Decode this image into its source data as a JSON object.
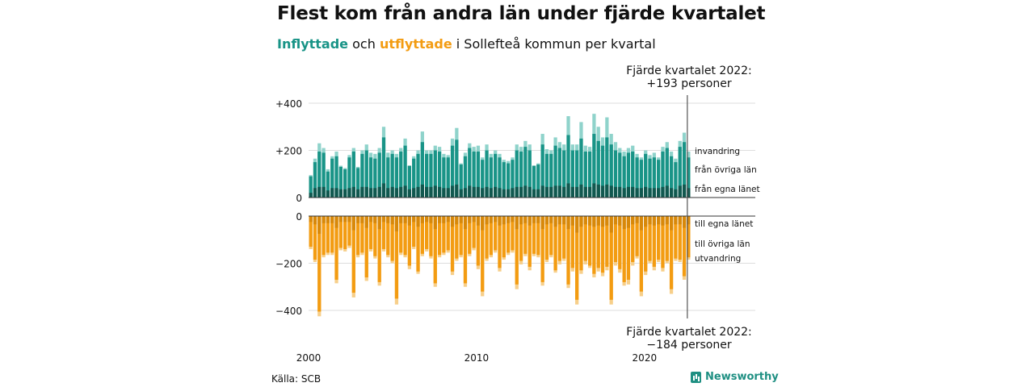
{
  "title": "Flest kom från andra län under fjärde kvartalet",
  "subtitle": {
    "in_word": "Inflyttade",
    "mid": " och ",
    "out_word": "utflyttade",
    "rest": " i Sollefteå kommun per kvartal"
  },
  "source": "Källa: SCB",
  "brand": "Newsworthy",
  "colors": {
    "in_own": "#11584f",
    "in_other": "#199487",
    "in_abroad": "#8fd3cb",
    "out_own": "#d7880a",
    "out_other": "#f39c12",
    "out_abroad": "#f7cf8a",
    "grid": "#dddddd",
    "axis": "#333333"
  },
  "chart_data": {
    "type": "bar",
    "x_start": 2000,
    "x_end": 2022.75,
    "x_unit": "kvartal",
    "ylim_top": [
      0,
      430
    ],
    "ylim_bottom": [
      -430,
      0
    ],
    "yticks_top": [
      "+400",
      "+200",
      "0"
    ],
    "yticks_bottom": [
      "0",
      "−200",
      "−400"
    ],
    "xticks": [
      "2000",
      "2010",
      "2020"
    ],
    "inflow_labels": [
      "invandring",
      "från övriga län",
      "från egna länet"
    ],
    "outflow_labels": [
      "till egna länet",
      "till övriga län",
      "utvandring"
    ],
    "annotation_top": [
      "Fjärde kvartalet 2022:",
      "+193 personer"
    ],
    "annotation_bottom": [
      "Fjärde kvartalet 2022:",
      "−184 personer"
    ],
    "inflow": {
      "total": [
        95,
        165,
        230,
        210,
        120,
        175,
        195,
        135,
        125,
        180,
        210,
        130,
        200,
        225,
        190,
        185,
        210,
        300,
        190,
        200,
        185,
        210,
        250,
        135,
        175,
        200,
        280,
        200,
        200,
        220,
        215,
        185,
        180,
        250,
        295,
        145,
        190,
        230,
        215,
        220,
        170,
        225,
        185,
        200,
        185,
        160,
        155,
        170,
        225,
        215,
        240,
        225,
        135,
        145,
        270,
        205,
        200,
        255,
        235,
        225,
        345,
        225,
        225,
        320,
        220,
        215,
        355,
        300,
        255,
        340,
        270,
        235,
        210,
        195,
        210,
        220,
        185,
        170,
        200,
        180,
        190,
        170,
        215,
        235,
        195,
        165,
        240,
        275,
        195
      ],
      "from_other_counties": [
        70,
        110,
        150,
        145,
        80,
        125,
        135,
        95,
        85,
        130,
        150,
        90,
        140,
        155,
        130,
        125,
        145,
        195,
        130,
        140,
        130,
        150,
        170,
        100,
        125,
        140,
        180,
        140,
        140,
        150,
        150,
        130,
        130,
        170,
        190,
        105,
        135,
        160,
        150,
        150,
        120,
        155,
        130,
        140,
        130,
        115,
        110,
        120,
        155,
        150,
        165,
        155,
        100,
        105,
        175,
        140,
        140,
        170,
        160,
        155,
        205,
        155,
        155,
        195,
        150,
        150,
        210,
        185,
        170,
        200,
        175,
        155,
        145,
        135,
        145,
        150,
        130,
        120,
        140,
        125,
        130,
        120,
        150,
        160,
        135,
        115,
        165,
        180,
        130
      ],
      "from_own_county": [
        20,
        40,
        45,
        45,
        30,
        40,
        40,
        35,
        35,
        40,
        45,
        35,
        45,
        45,
        40,
        40,
        45,
        60,
        40,
        45,
        40,
        45,
        50,
        35,
        40,
        45,
        55,
        45,
        45,
        50,
        45,
        40,
        40,
        50,
        55,
        35,
        40,
        50,
        45,
        45,
        40,
        45,
        40,
        45,
        40,
        35,
        35,
        40,
        45,
        45,
        50,
        45,
        35,
        35,
        50,
        45,
        45,
        50,
        50,
        45,
        60,
        45,
        45,
        55,
        45,
        45,
        60,
        55,
        50,
        55,
        50,
        45,
        45,
        40,
        45,
        45,
        40,
        40,
        45,
        40,
        40,
        40,
        45,
        50,
        40,
        35,
        50,
        55,
        40
      ]
    },
    "outflow": {
      "total": [
        -140,
        -195,
        -425,
        -175,
        -165,
        -165,
        -285,
        -145,
        -150,
        -135,
        -345,
        -175,
        -165,
        -275,
        -150,
        -180,
        -295,
        -150,
        -175,
        -200,
        -375,
        -165,
        -175,
        -225,
        -140,
        -245,
        -170,
        -150,
        -180,
        -300,
        -175,
        -165,
        -155,
        -250,
        -190,
        -175,
        -300,
        -170,
        -145,
        -225,
        -340,
        -190,
        -175,
        -155,
        -235,
        -185,
        -165,
        -155,
        -310,
        -205,
        -170,
        -230,
        -170,
        -175,
        -295,
        -195,
        -175,
        -240,
        -205,
        -190,
        -305,
        -235,
        -375,
        -245,
        -205,
        -220,
        -260,
        -235,
        -255,
        -230,
        -375,
        -210,
        -240,
        -295,
        -290,
        -210,
        -180,
        -340,
        -250,
        -200,
        -230,
        -195,
        -235,
        -200,
        -330,
        -190,
        -195,
        -270,
        -185
      ],
      "to_other_counties": [
        -105,
        -150,
        -330,
        -135,
        -125,
        -125,
        -220,
        -110,
        -115,
        -100,
        -265,
        -135,
        -125,
        -210,
        -115,
        -140,
        -225,
        -115,
        -135,
        -155,
        -285,
        -125,
        -135,
        -170,
        -105,
        -190,
        -130,
        -115,
        -140,
        -230,
        -135,
        -125,
        -120,
        -190,
        -145,
        -135,
        -230,
        -130,
        -110,
        -170,
        -260,
        -145,
        -135,
        -120,
        -180,
        -140,
        -125,
        -120,
        -235,
        -155,
        -130,
        -175,
        -130,
        -135,
        -225,
        -150,
        -135,
        -185,
        -155,
        -145,
        -235,
        -180,
        -285,
        -185,
        -155,
        -170,
        -200,
        -180,
        -195,
        -175,
        -285,
        -160,
        -185,
        -225,
        -220,
        -160,
        -140,
        -260,
        -190,
        -155,
        -175,
        -150,
        -180,
        -155,
        -250,
        -145,
        -150,
        -205,
        -140
      ],
      "to_own_county": [
        -25,
        -35,
        -75,
        -30,
        -30,
        -30,
        -50,
        -25,
        -25,
        -25,
        -60,
        -30,
        -30,
        -50,
        -25,
        -30,
        -55,
        -25,
        -30,
        -35,
        -65,
        -30,
        -30,
        -40,
        -25,
        -45,
        -30,
        -25,
        -30,
        -55,
        -30,
        -30,
        -25,
        -45,
        -35,
        -30,
        -55,
        -30,
        -25,
        -40,
        -60,
        -35,
        -30,
        -25,
        -40,
        -35,
        -30,
        -25,
        -55,
        -35,
        -30,
        -40,
        -30,
        -30,
        -55,
        -35,
        -30,
        -45,
        -35,
        -35,
        -55,
        -40,
        -70,
        -45,
        -35,
        -40,
        -45,
        -40,
        -45,
        -40,
        -70,
        -35,
        -40,
        -55,
        -50,
        -35,
        -30,
        -60,
        -45,
        -35,
        -40,
        -35,
        -40,
        -35,
        -60,
        -35,
        -35,
        -50,
        -35
      ]
    }
  }
}
